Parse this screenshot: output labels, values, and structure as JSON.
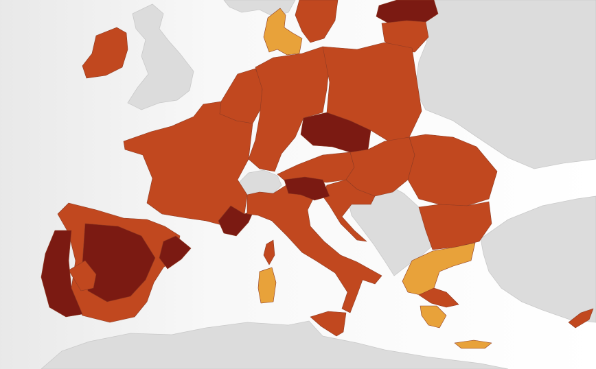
{
  "map": {
    "colors": {
      "sea": "#ffffff",
      "non_reporting_land": "#dcdcdc",
      "dark_red": "#7b1a12",
      "red": "#c1481f",
      "orange": "#e8a23a"
    },
    "regions": [
      {
        "name": "ireland",
        "category": "red"
      },
      {
        "name": "great-britain",
        "category": "non_reporting_land"
      },
      {
        "name": "norway",
        "category": "non_reporting_land"
      },
      {
        "name": "sweden",
        "category": "red"
      },
      {
        "name": "denmark",
        "category": "orange"
      },
      {
        "name": "estonia-latvia",
        "category": "dark_red"
      },
      {
        "name": "lithuania",
        "category": "red"
      },
      {
        "name": "france",
        "category": "red"
      },
      {
        "name": "france-southeast",
        "category": "dark_red"
      },
      {
        "name": "benelux",
        "category": "red"
      },
      {
        "name": "germany",
        "category": "red"
      },
      {
        "name": "czechia",
        "category": "dark_red"
      },
      {
        "name": "poland",
        "category": "red"
      },
      {
        "name": "austria",
        "category": "red"
      },
      {
        "name": "slovakia-hungary",
        "category": "red"
      },
      {
        "name": "switzerland",
        "category": "non_reporting_land"
      },
      {
        "name": "italy",
        "category": "red"
      },
      {
        "name": "italy-north",
        "category": "dark_red"
      },
      {
        "name": "sicily",
        "category": "red"
      },
      {
        "name": "sardinia",
        "category": "orange"
      },
      {
        "name": "corsica",
        "category": "red"
      },
      {
        "name": "spain",
        "category": "red"
      },
      {
        "name": "spain-center",
        "category": "dark_red"
      },
      {
        "name": "spain-madrid",
        "category": "red"
      },
      {
        "name": "catalonia",
        "category": "dark_red"
      },
      {
        "name": "portugal",
        "category": "dark_red"
      },
      {
        "name": "balkans",
        "category": "non_reporting_land"
      },
      {
        "name": "croatia",
        "category": "red"
      },
      {
        "name": "romania",
        "category": "red"
      },
      {
        "name": "bulgaria",
        "category": "red"
      },
      {
        "name": "greece-north",
        "category": "orange"
      },
      {
        "name": "greece-attica",
        "category": "red"
      },
      {
        "name": "peloponnese",
        "category": "orange"
      },
      {
        "name": "crete",
        "category": "orange"
      },
      {
        "name": "cyprus",
        "category": "red"
      },
      {
        "name": "turkey",
        "category": "non_reporting_land"
      },
      {
        "name": "north-africa",
        "category": "non_reporting_land"
      },
      {
        "name": "belarus-ukraine",
        "category": "non_reporting_land"
      }
    ]
  }
}
